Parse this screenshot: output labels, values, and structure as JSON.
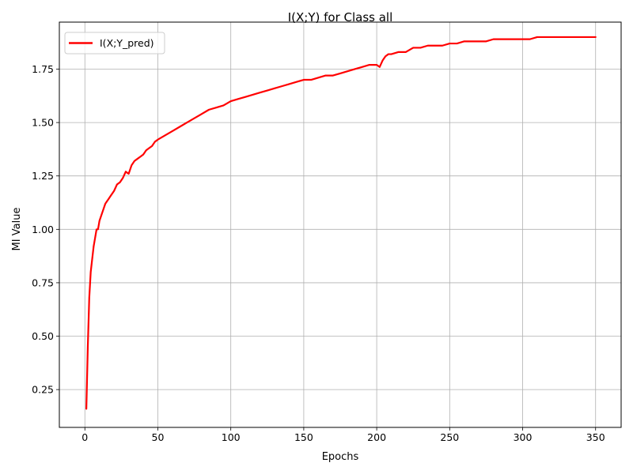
{
  "colors": {
    "series": "#ff0000",
    "grid": "#b0b0b0",
    "axis": "#000000",
    "background": "#ffffff"
  },
  "chart_data": {
    "type": "line",
    "title": "I(X;Y) for Class all",
    "xlabel": "Epochs",
    "ylabel": "MI Value",
    "xlim": [
      -17.5,
      367.5
    ],
    "ylim": [
      0.073,
      1.97
    ],
    "xticks": [
      0,
      50,
      100,
      150,
      200,
      250,
      300,
      350
    ],
    "yticks": [
      0.25,
      0.5,
      0.75,
      1.0,
      1.25,
      1.5,
      1.75
    ],
    "xtick_labels": [
      "0",
      "50",
      "100",
      "150",
      "200",
      "250",
      "300",
      "350"
    ],
    "ytick_labels": [
      "0.25",
      "0.50",
      "0.75",
      "1.00",
      "1.25",
      "1.50",
      "1.75"
    ],
    "grid": true,
    "legend_position": "top-left",
    "series": [
      {
        "name": "I(X;Y_pred)",
        "color": "#ff0000",
        "points": [
          [
            1,
            0.16
          ],
          [
            2,
            0.45
          ],
          [
            3,
            0.68
          ],
          [
            4,
            0.8
          ],
          [
            5,
            0.86
          ],
          [
            6,
            0.92
          ],
          [
            7,
            0.96
          ],
          [
            8,
            1.0
          ],
          [
            9,
            1.0
          ],
          [
            10,
            1.04
          ],
          [
            12,
            1.08
          ],
          [
            14,
            1.12
          ],
          [
            16,
            1.14
          ],
          [
            18,
            1.16
          ],
          [
            20,
            1.18
          ],
          [
            22,
            1.21
          ],
          [
            24,
            1.22
          ],
          [
            26,
            1.24
          ],
          [
            28,
            1.27
          ],
          [
            30,
            1.26
          ],
          [
            32,
            1.3
          ],
          [
            34,
            1.32
          ],
          [
            36,
            1.33
          ],
          [
            38,
            1.34
          ],
          [
            40,
            1.35
          ],
          [
            42,
            1.37
          ],
          [
            44,
            1.38
          ],
          [
            46,
            1.39
          ],
          [
            48,
            1.41
          ],
          [
            50,
            1.42
          ],
          [
            55,
            1.44
          ],
          [
            60,
            1.46
          ],
          [
            65,
            1.48
          ],
          [
            70,
            1.5
          ],
          [
            75,
            1.52
          ],
          [
            80,
            1.54
          ],
          [
            85,
            1.56
          ],
          [
            90,
            1.57
          ],
          [
            95,
            1.58
          ],
          [
            100,
            1.6
          ],
          [
            105,
            1.61
          ],
          [
            110,
            1.62
          ],
          [
            115,
            1.63
          ],
          [
            120,
            1.64
          ],
          [
            125,
            1.65
          ],
          [
            130,
            1.66
          ],
          [
            135,
            1.67
          ],
          [
            140,
            1.68
          ],
          [
            145,
            1.69
          ],
          [
            150,
            1.7
          ],
          [
            155,
            1.7
          ],
          [
            160,
            1.71
          ],
          [
            165,
            1.72
          ],
          [
            170,
            1.72
          ],
          [
            175,
            1.73
          ],
          [
            180,
            1.74
          ],
          [
            185,
            1.75
          ],
          [
            190,
            1.76
          ],
          [
            195,
            1.77
          ],
          [
            200,
            1.77
          ],
          [
            202,
            1.76
          ],
          [
            204,
            1.79
          ],
          [
            206,
            1.81
          ],
          [
            208,
            1.82
          ],
          [
            210,
            1.82
          ],
          [
            215,
            1.83
          ],
          [
            220,
            1.83
          ],
          [
            225,
            1.85
          ],
          [
            230,
            1.85
          ],
          [
            235,
            1.86
          ],
          [
            240,
            1.86
          ],
          [
            245,
            1.86
          ],
          [
            250,
            1.87
          ],
          [
            255,
            1.87
          ],
          [
            260,
            1.88
          ],
          [
            265,
            1.88
          ],
          [
            270,
            1.88
          ],
          [
            275,
            1.88
          ],
          [
            280,
            1.89
          ],
          [
            285,
            1.89
          ],
          [
            290,
            1.89
          ],
          [
            295,
            1.89
          ],
          [
            300,
            1.89
          ],
          [
            305,
            1.89
          ],
          [
            310,
            1.9
          ],
          [
            315,
            1.9
          ],
          [
            320,
            1.9
          ],
          [
            325,
            1.9
          ],
          [
            330,
            1.9
          ],
          [
            335,
            1.9
          ],
          [
            340,
            1.9
          ],
          [
            345,
            1.9
          ],
          [
            350,
            1.9
          ]
        ]
      }
    ]
  }
}
